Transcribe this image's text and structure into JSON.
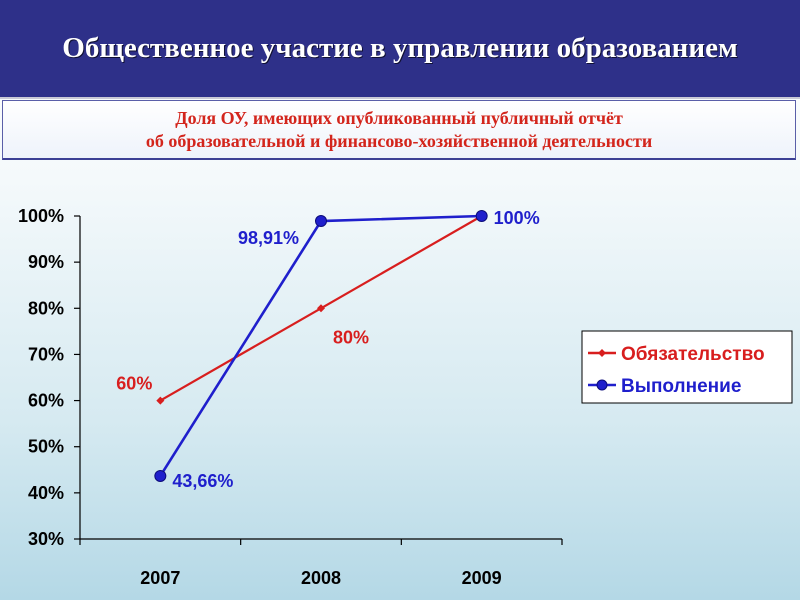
{
  "header": {
    "title": "Общественное участие в управлении образованием"
  },
  "subtitle": {
    "line1": "Доля ОУ, имеющих опубликованный публичный отчёт",
    "line2": "об образовательной и финансово-хозяйственной деятельности"
  },
  "colors": {
    "header_background": "#2e3089",
    "subtitle_text": "#d3251c",
    "series_obligation": "#d81e1e",
    "series_fulfillment": "#1f1fcc"
  },
  "chart_data": {
    "type": "line",
    "title": "",
    "xlabel": "",
    "ylabel": "",
    "categories": [
      "2007",
      "2008",
      "2009"
    ],
    "ylim": [
      30,
      100
    ],
    "yticks": [
      30,
      40,
      50,
      60,
      70,
      80,
      90,
      100
    ],
    "ytick_labels": [
      "30%",
      "40%",
      "50%",
      "60%",
      "70%",
      "80%",
      "90%",
      "100%"
    ],
    "grid": false,
    "legend_position": "right",
    "series": [
      {
        "name": "Обязательство",
        "color": "#d81e1e",
        "marker": "diamond",
        "values": [
          60,
          80,
          100
        ],
        "labels": [
          "60%",
          "80%",
          ""
        ]
      },
      {
        "name": "Выполнение",
        "color": "#1f1fcc",
        "marker": "circle",
        "values": [
          43.66,
          98.91,
          100
        ],
        "labels": [
          "43,66%",
          "98,91%",
          "100%"
        ]
      }
    ]
  }
}
